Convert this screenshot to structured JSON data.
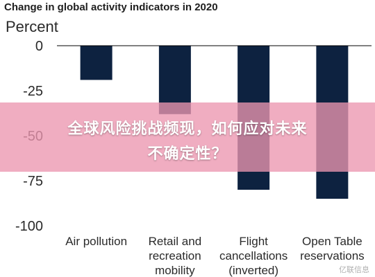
{
  "chart_data": {
    "type": "bar",
    "title": "Change in global activity indicators in 2020",
    "ylabel": "Percent",
    "xlabel": "",
    "categories": [
      [
        "Air pollution"
      ],
      [
        "Retail and",
        "recreation",
        "mobility"
      ],
      [
        "Flight",
        "cancellations",
        "(inverted)"
      ],
      [
        "Open Table",
        "reservations"
      ]
    ],
    "values": [
      -19,
      -38,
      -80,
      -85
    ],
    "ylim": [
      -100,
      0
    ],
    "yticks": [
      0,
      -25,
      -50,
      -75,
      -100
    ],
    "ytick_labels": [
      "0",
      "-25",
      "-50",
      "-75",
      "-100"
    ],
    "bar_color": "#0d2240",
    "grid": false,
    "legend": "none"
  },
  "banner": {
    "line1": "全球风险挑战频现，如何应对未来",
    "line2": "不确定性？",
    "color": "#ec96af"
  },
  "watermark": "亿联信息"
}
